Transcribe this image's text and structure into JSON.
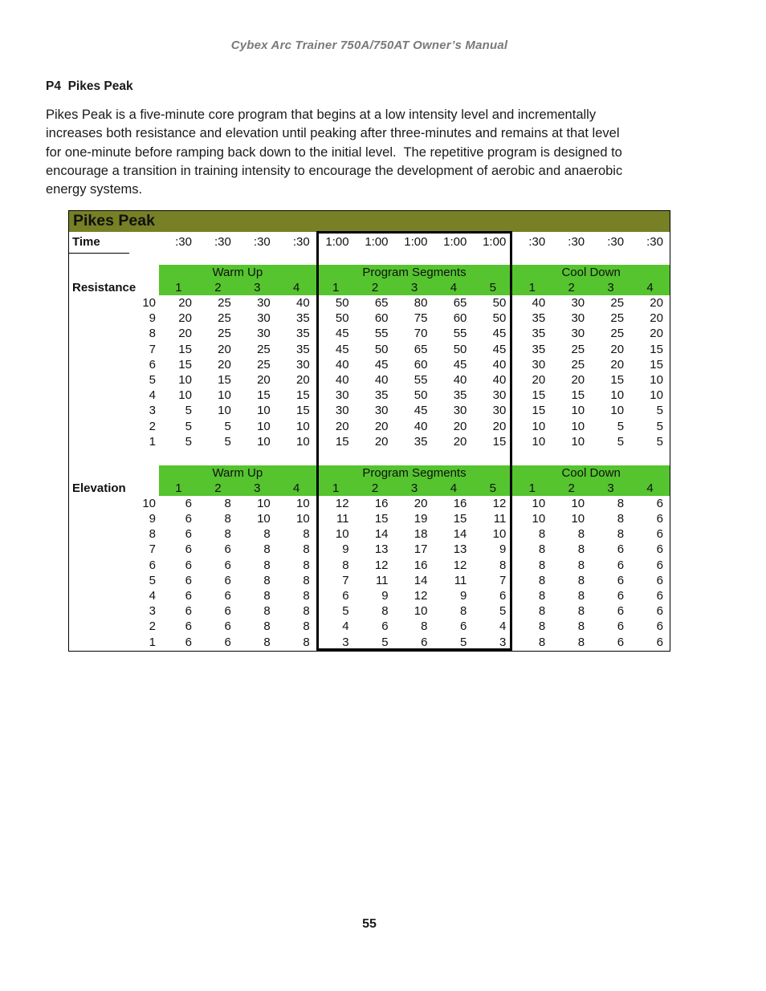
{
  "page": {
    "header": "Cybex Arc Trainer 750A/750AT Owner’s Manual",
    "section_heading": "P4  Pikes Peak",
    "paragraph": "Pikes Peak is a five-minute core program that begins at a low intensity level and incrementally\nincreases both resistance and elevation until peaking after three-minutes and remains at that level\nfor one-minute before ramping back down to the initial level.  The repetitive program is designed to\nencourage a transition in training intensity to encourage the development of aerobic and anaerobic\nenergy systems.",
    "page_number": "55"
  },
  "colors": {
    "title_bar_olive": "#778024",
    "group_header_green": "#55C42F",
    "header_text_gray": "#7a7a7a",
    "segment_box_border": "#000000"
  },
  "table": {
    "title": "Pikes Peak",
    "time_label": "Time",
    "time_values": [
      ":30",
      ":30",
      ":30",
      ":30",
      "1:00",
      "1:00",
      "1:00",
      "1:00",
      "1:00",
      ":30",
      ":30",
      ":30",
      ":30"
    ],
    "groups": [
      {
        "label": "Warm Up",
        "cols": 4
      },
      {
        "label": "Program Segments",
        "cols": 5
      },
      {
        "label": "Cool Down",
        "cols": 4
      }
    ],
    "column_numbers": [
      "1",
      "2",
      "3",
      "4",
      "1",
      "2",
      "3",
      "4",
      "5",
      "1",
      "2",
      "3",
      "4"
    ],
    "sections": [
      {
        "label": "Resistance",
        "rows": [
          {
            "level": 10,
            "values": [
              20,
              25,
              30,
              40,
              50,
              65,
              80,
              65,
              50,
              40,
              30,
              25,
              20
            ]
          },
          {
            "level": 9,
            "values": [
              20,
              25,
              30,
              35,
              50,
              60,
              75,
              60,
              50,
              35,
              30,
              25,
              20
            ]
          },
          {
            "level": 8,
            "values": [
              20,
              25,
              30,
              35,
              45,
              55,
              70,
              55,
              45,
              35,
              30,
              25,
              20
            ]
          },
          {
            "level": 7,
            "values": [
              15,
              20,
              25,
              35,
              45,
              50,
              65,
              50,
              45,
              35,
              25,
              20,
              15
            ]
          },
          {
            "level": 6,
            "values": [
              15,
              20,
              25,
              30,
              40,
              45,
              60,
              45,
              40,
              30,
              25,
              20,
              15
            ]
          },
          {
            "level": 5,
            "values": [
              10,
              15,
              20,
              20,
              40,
              40,
              55,
              40,
              40,
              20,
              20,
              15,
              10
            ]
          },
          {
            "level": 4,
            "values": [
              10,
              10,
              15,
              15,
              30,
              35,
              50,
              35,
              30,
              15,
              15,
              10,
              10
            ]
          },
          {
            "level": 3,
            "values": [
              5,
              10,
              10,
              15,
              30,
              30,
              45,
              30,
              30,
              15,
              10,
              10,
              5
            ]
          },
          {
            "level": 2,
            "values": [
              5,
              5,
              10,
              10,
              20,
              20,
              40,
              20,
              20,
              10,
              10,
              5,
              5
            ]
          },
          {
            "level": 1,
            "values": [
              5,
              5,
              10,
              10,
              15,
              20,
              35,
              20,
              15,
              10,
              10,
              5,
              5
            ]
          }
        ]
      },
      {
        "label": "Elevation",
        "rows": [
          {
            "level": 10,
            "values": [
              6,
              8,
              10,
              10,
              12,
              16,
              20,
              16,
              12,
              10,
              10,
              8,
              6
            ]
          },
          {
            "level": 9,
            "values": [
              6,
              8,
              10,
              10,
              11,
              15,
              19,
              15,
              11,
              10,
              10,
              8,
              6
            ]
          },
          {
            "level": 8,
            "values": [
              6,
              8,
              8,
              8,
              10,
              14,
              18,
              14,
              10,
              8,
              8,
              8,
              6
            ]
          },
          {
            "level": 7,
            "values": [
              6,
              6,
              8,
              8,
              9,
              13,
              17,
              13,
              9,
              8,
              8,
              6,
              6
            ]
          },
          {
            "level": 6,
            "values": [
              6,
              6,
              8,
              8,
              8,
              12,
              16,
              12,
              8,
              8,
              8,
              6,
              6
            ]
          },
          {
            "level": 5,
            "values": [
              6,
              6,
              8,
              8,
              7,
              11,
              14,
              11,
              7,
              8,
              8,
              6,
              6
            ]
          },
          {
            "level": 4,
            "values": [
              6,
              6,
              8,
              8,
              6,
              9,
              12,
              9,
              6,
              8,
              8,
              6,
              6
            ]
          },
          {
            "level": 3,
            "values": [
              6,
              6,
              8,
              8,
              5,
              8,
              10,
              8,
              5,
              8,
              8,
              6,
              6
            ]
          },
          {
            "level": 2,
            "values": [
              6,
              6,
              8,
              8,
              4,
              6,
              8,
              6,
              4,
              8,
              8,
              6,
              6
            ]
          },
          {
            "level": 1,
            "values": [
              6,
              6,
              8,
              8,
              3,
              5,
              6,
              5,
              3,
              8,
              8,
              6,
              6
            ]
          }
        ]
      }
    ]
  }
}
